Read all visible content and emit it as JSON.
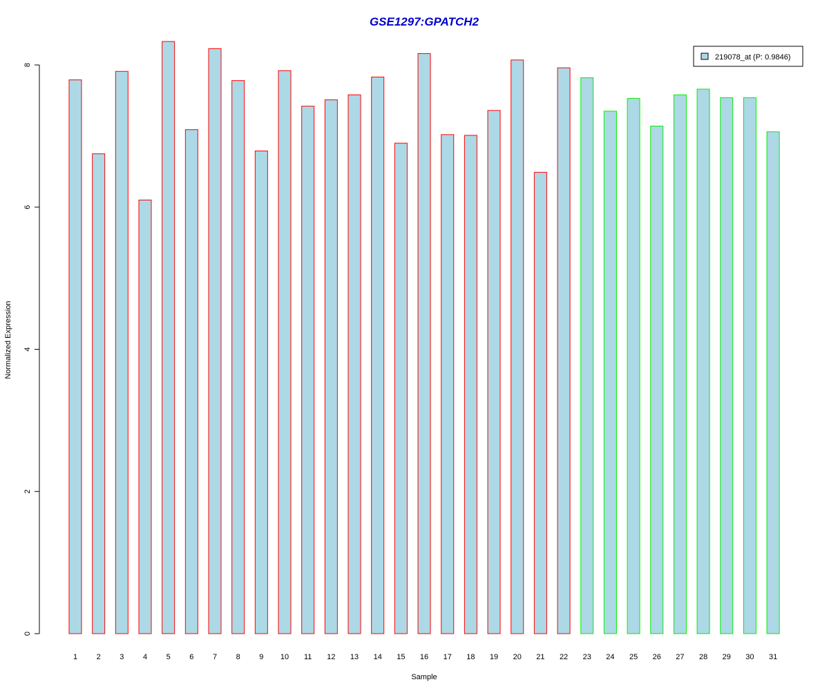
{
  "chart_data": {
    "type": "bar",
    "title": "GSE1297:GPATCH2",
    "xlabel": "Sample",
    "ylabel": "Normalized Expression",
    "ylim": [
      0,
      8.3
    ],
    "yticks": [
      0,
      2,
      4,
      6,
      8
    ],
    "categories": [
      "1",
      "2",
      "3",
      "4",
      "5",
      "6",
      "7",
      "8",
      "9",
      "10",
      "11",
      "12",
      "13",
      "14",
      "15",
      "16",
      "17",
      "18",
      "19",
      "20",
      "21",
      "22",
      "23",
      "24",
      "25",
      "26",
      "27",
      "28",
      "29",
      "30",
      "31"
    ],
    "values": [
      7.79,
      6.75,
      7.91,
      6.1,
      8.33,
      7.09,
      8.23,
      7.78,
      6.79,
      7.92,
      7.42,
      7.51,
      7.58,
      7.83,
      6.9,
      8.16,
      7.02,
      7.01,
      7.36,
      8.07,
      6.49,
      7.96,
      7.82,
      7.35,
      7.53,
      7.14,
      7.58,
      7.66,
      7.54,
      7.54,
      7.06
    ],
    "groups": [
      "red",
      "red",
      "red",
      "red",
      "red",
      "red",
      "red",
      "red",
      "red",
      "red",
      "red",
      "red",
      "red",
      "red",
      "red",
      "red",
      "red",
      "red",
      "red",
      "red",
      "red",
      "red",
      "green",
      "green",
      "green",
      "green",
      "green",
      "green",
      "green",
      "green",
      "green"
    ],
    "legend": {
      "label": "219078_at (P: 0.9846)",
      "position": "top-right"
    },
    "colors": {
      "title": "#0000cc",
      "bar_fill": "#add8e6",
      "red": "#ff0000",
      "green": "#00ee00",
      "axis": "#000000"
    },
    "grid": false
  }
}
